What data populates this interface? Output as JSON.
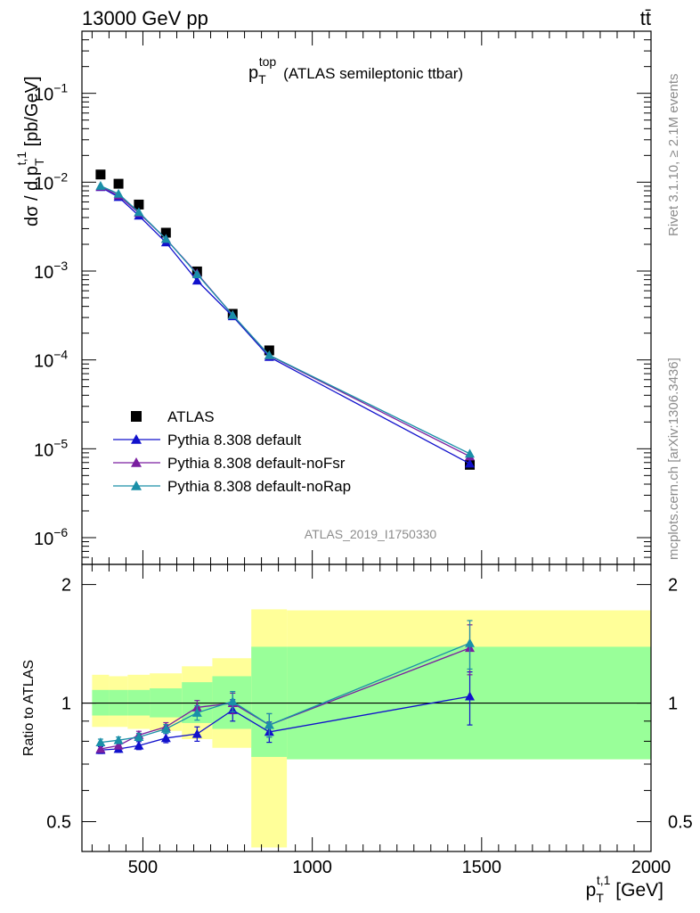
{
  "header": {
    "left": "13000 GeV pp",
    "right": "tt̄"
  },
  "side": {
    "rivet": "Rivet 3.1.10, ≥ 2.1M events",
    "mcplots": "mcplots.cern.ch [arXiv:1306.3436]"
  },
  "watermark": "ATLAS_2019_I1750330",
  "colors": {
    "data": "#000000",
    "default": "#1111cc",
    "noFsr": "#7a1fa0",
    "noRap": "#1a8fa8",
    "band_outer": "#ffff99",
    "band_inner": "#99ff99"
  },
  "chart_data": [
    {
      "type": "scatter",
      "title": "p_T^top (ATLAS semileptonic ttbar)",
      "title_main": "p",
      "title_sub": "T",
      "title_sup": "top",
      "title_rest": "(ATLAS semileptonic ttbar)",
      "ylabel": "dσ / d p_T^{t,1} [pb/GeV]",
      "ylabel_parts": {
        "a": "dσ / d p",
        "sub": "T",
        "sup": "t,1",
        "b": " [pb/GeV]"
      },
      "yscale": "log",
      "xlim": [
        320,
        2000
      ],
      "ylim": [
        5e-07,
        0.5
      ],
      "yticks": [
        {
          "value": 1e-06,
          "base": "10",
          "exp": "−6"
        },
        {
          "value": 1e-05,
          "base": "10",
          "exp": "−5"
        },
        {
          "value": 0.0001,
          "base": "10",
          "exp": "−4"
        },
        {
          "value": 0.001,
          "base": "10",
          "exp": "−3"
        },
        {
          "value": 0.01,
          "base": "10",
          "exp": "−2"
        },
        {
          "value": 0.1,
          "base": "10",
          "exp": "−1"
        }
      ],
      "legend_position": "center-left",
      "series": [
        {
          "name": "ATLAS",
          "key": "data",
          "marker": "square",
          "x": [
            375,
            428,
            488,
            568,
            660,
            765,
            873,
            1465
          ],
          "y": [
            0.0122,
            0.0096,
            0.0056,
            0.0027,
            0.00099,
            0.00033,
            0.000128,
            6.6e-06
          ],
          "xerr": [
            25,
            28,
            32,
            38,
            45,
            55,
            60,
            535
          ]
        },
        {
          "name": "Pythia 8.308 default",
          "key": "default",
          "marker": "triangle",
          "x": [
            375,
            428,
            488,
            568,
            660,
            765,
            873,
            1465
          ],
          "y": [
            0.0088,
            0.0068,
            0.0042,
            0.0021,
            0.00078,
            0.00031,
            0.000108,
            6.8e-06
          ]
        },
        {
          "name": "Pythia 8.308 default-noFsr",
          "key": "noFsr",
          "marker": "triangle",
          "x": [
            375,
            428,
            488,
            568,
            660,
            765,
            873,
            1465
          ],
          "y": [
            0.0089,
            0.0071,
            0.0045,
            0.0023,
            0.00094,
            0.00032,
            0.000112,
            8.2e-06
          ]
        },
        {
          "name": "Pythia 8.308 default-noRap",
          "key": "noRap",
          "marker": "triangle",
          "x": [
            375,
            428,
            488,
            568,
            660,
            765,
            873,
            1465
          ],
          "y": [
            0.0091,
            0.0074,
            0.0046,
            0.0023,
            0.00092,
            0.00032,
            0.000113,
            8.8e-06
          ]
        }
      ]
    },
    {
      "type": "line",
      "ylabel": "Ratio to ATLAS",
      "xlabel": "p_T^{t,1} [GeV]",
      "xlabel_parts": {
        "a": "p",
        "sub": "T",
        "sup": "t,1",
        "b": " [GeV]"
      },
      "xlim": [
        320,
        2000
      ],
      "ylim": [
        0.42,
        2.25
      ],
      "yscale": "log",
      "xticks": [
        500,
        1000,
        1500,
        2000
      ],
      "xtick_labels": [
        "500",
        "1000",
        "1500",
        "2000"
      ],
      "yticks": [
        0.5,
        1,
        2
      ],
      "ytick_labels": [
        "0.5",
        "1",
        "2"
      ],
      "bins": [
        350,
        400,
        455,
        520,
        615,
        705,
        820,
        925,
        2000
      ],
      "band_outer": [
        [
          0.87,
          1.18
        ],
        [
          0.87,
          1.17
        ],
        [
          0.86,
          1.18
        ],
        [
          0.85,
          1.19
        ],
        [
          0.81,
          1.24
        ],
        [
          0.77,
          1.3
        ],
        [
          0.43,
          1.73
        ],
        [
          0.72,
          1.72
        ]
      ],
      "band_inner": [
        [
          0.93,
          1.08
        ],
        [
          0.93,
          1.08
        ],
        [
          0.93,
          1.08
        ],
        [
          0.92,
          1.09
        ],
        [
          0.89,
          1.13
        ],
        [
          0.86,
          1.17
        ],
        [
          0.73,
          1.39
        ],
        [
          0.72,
          1.39
        ]
      ],
      "series": [
        {
          "name": "Pythia 8.308 default",
          "key": "default",
          "x": [
            375,
            428,
            488,
            568,
            660,
            765,
            873,
            1465
          ],
          "y": [
            0.76,
            0.765,
            0.78,
            0.815,
            0.835,
            0.96,
            0.845,
            1.04
          ],
          "yerr": [
            0.015,
            0.015,
            0.018,
            0.022,
            0.035,
            0.06,
            0.05,
            0.16
          ]
        },
        {
          "name": "Pythia 8.308 default-noFsr",
          "key": "noFsr",
          "x": [
            375,
            428,
            488,
            568,
            660,
            765,
            873,
            1465
          ],
          "y": [
            0.765,
            0.78,
            0.83,
            0.87,
            0.975,
            1.0,
            0.88,
            1.38
          ],
          "yerr": [
            0.015,
            0.015,
            0.018,
            0.022,
            0.04,
            0.06,
            0.06,
            0.2
          ]
        },
        {
          "name": "Pythia 8.308 default-noRap",
          "key": "noRap",
          "x": [
            375,
            428,
            488,
            568,
            660,
            765,
            873,
            1465
          ],
          "y": [
            0.795,
            0.805,
            0.82,
            0.86,
            0.945,
            1.01,
            0.88,
            1.42
          ],
          "yerr": [
            0.015,
            0.015,
            0.018,
            0.022,
            0.04,
            0.06,
            0.06,
            0.2
          ]
        }
      ]
    }
  ]
}
